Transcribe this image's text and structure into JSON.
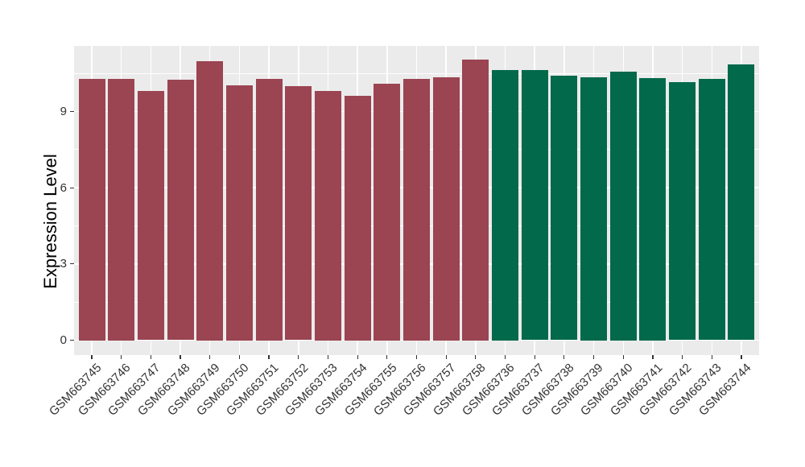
{
  "chart_data": {
    "type": "bar",
    "title": "",
    "xlabel": "",
    "ylabel": "Expression Level",
    "categories": [
      "GSM663745",
      "GSM663746",
      "GSM663747",
      "GSM663748",
      "GSM663749",
      "GSM663750",
      "GSM663751",
      "GSM663752",
      "GSM663753",
      "GSM663754",
      "GSM663755",
      "GSM663756",
      "GSM663757",
      "GSM663758",
      "GSM663736",
      "GSM663737",
      "GSM663738",
      "GSM663739",
      "GSM663740",
      "GSM663741",
      "GSM663742",
      "GSM663743",
      "GSM663744"
    ],
    "values": [
      10.27,
      10.27,
      9.79,
      10.24,
      10.97,
      10.02,
      10.27,
      9.99,
      9.81,
      9.62,
      10.08,
      10.28,
      10.33,
      11.03,
      10.62,
      10.64,
      10.4,
      10.33,
      10.57,
      10.32,
      10.15,
      10.29,
      10.85
    ],
    "bar_group": [
      0,
      0,
      0,
      0,
      0,
      0,
      0,
      0,
      0,
      0,
      0,
      0,
      0,
      0,
      1,
      1,
      1,
      1,
      1,
      1,
      1,
      1,
      1
    ],
    "group_colors": [
      "#9B4452",
      "#03694B"
    ],
    "yticks": [
      0,
      3,
      6,
      9
    ],
    "ytick_labels": [
      "0",
      "3",
      "6",
      "9"
    ],
    "yticks_minor": [
      1.5,
      4.5,
      7.5,
      10.5
    ],
    "ylim": [
      -0.57,
      11.58
    ],
    "bar_width_fraction": 0.9,
    "grid": "on",
    "legend": "none",
    "panel_bg": "#EBEBEB",
    "grid_color": "#FFFFFF",
    "tick_color": "#333333"
  }
}
